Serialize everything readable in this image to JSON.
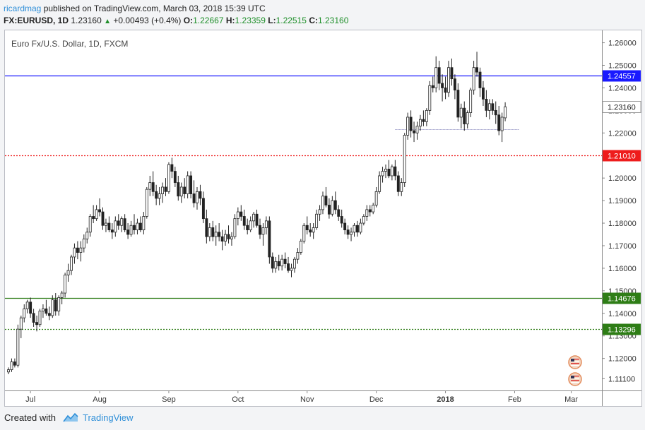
{
  "header": {
    "author": "ricardmag",
    "published_text": " published on TradingView.com, March 03, 2018 15:39 UTC",
    "symbol": "FX:EURUSD, 1D",
    "last": "1.23160",
    "change": "+0.00493 (+0.4%)",
    "o_label": "O:",
    "o_value": "1.22667",
    "h_label": "H:",
    "h_value": "1.23359",
    "l_label": "L:",
    "l_value": "1.22515",
    "c_label": "C:",
    "c_value": "1.23160"
  },
  "footer": {
    "created_with": "Created with",
    "brand": "TradingView"
  },
  "chart_data": {
    "type": "candlestick",
    "title": "Euro Fx/U.S. Dollar, 1D, FXCM",
    "ylim": [
      1.1058,
      1.2655
    ],
    "price_ticks": [
      "1.26000",
      "1.25000",
      "1.24000",
      "1.23000",
      "1.22000",
      "1.21000",
      "1.20000",
      "1.19000",
      "1.18000",
      "1.17000",
      "1.16000",
      "1.15000",
      "1.14000",
      "1.13000",
      "1.12000",
      "1.11100"
    ],
    "price_tick_values": [
      1.26,
      1.25,
      1.24,
      1.23,
      1.22,
      1.21,
      1.2,
      1.19,
      1.18,
      1.17,
      1.16,
      1.15,
      1.14,
      1.13,
      1.12,
      1.111
    ],
    "x_labels": [
      "Jul",
      "Aug",
      "Sep",
      "Oct",
      "Nov",
      "Dec",
      "2018",
      "Feb",
      "Mar"
    ],
    "x_label_bold": [
      false,
      false,
      false,
      false,
      false,
      false,
      true,
      false,
      false
    ],
    "x_label_index": [
      7,
      29,
      51,
      73,
      95,
      117,
      139,
      161,
      179
    ],
    "horizontal_levels": [
      {
        "price": 1.24557,
        "label": "1.24557",
        "color": "#1a1aff",
        "style": "solid"
      },
      {
        "price": 1.2101,
        "label": "1.21010",
        "color": "#ee1c1c",
        "style": "dotted"
      },
      {
        "price": 1.14676,
        "label": "1.14676",
        "color": "#2e7d16",
        "style": "solid"
      },
      {
        "price": 1.13296,
        "label": "1.13296",
        "color": "#2e7d16",
        "style": "dotted"
      }
    ],
    "last_price": {
      "price": 1.2316,
      "label": "1.23160"
    },
    "prev_close_line": 1.2218,
    "candle_width": 3.1,
    "candles": [
      [
        1.114,
        1.116,
        1.113,
        1.115
      ],
      [
        1.115,
        1.12,
        1.114,
        1.1185
      ],
      [
        1.1185,
        1.12,
        1.116,
        1.117
      ],
      [
        1.117,
        1.135,
        1.116,
        1.133
      ],
      [
        1.133,
        1.139,
        1.129,
        1.138
      ],
      [
        1.138,
        1.144,
        1.136,
        1.142
      ],
      [
        1.142,
        1.146,
        1.14,
        1.145
      ],
      [
        1.145,
        1.147,
        1.138,
        1.14
      ],
      [
        1.14,
        1.142,
        1.134,
        1.136
      ],
      [
        1.136,
        1.139,
        1.132,
        1.135
      ],
      [
        1.135,
        1.142,
        1.134,
        1.141
      ],
      [
        1.141,
        1.144,
        1.138,
        1.142
      ],
      [
        1.142,
        1.146,
        1.139,
        1.14
      ],
      [
        1.14,
        1.143,
        1.137,
        1.139
      ],
      [
        1.139,
        1.148,
        1.138,
        1.146
      ],
      [
        1.146,
        1.149,
        1.139,
        1.141
      ],
      [
        1.141,
        1.148,
        1.139,
        1.147
      ],
      [
        1.147,
        1.15,
        1.144,
        1.149
      ],
      [
        1.149,
        1.158,
        1.147,
        1.157
      ],
      [
        1.157,
        1.162,
        1.154,
        1.159
      ],
      [
        1.159,
        1.166,
        1.157,
        1.165
      ],
      [
        1.165,
        1.171,
        1.162,
        1.169
      ],
      [
        1.169,
        1.172,
        1.164,
        1.167
      ],
      [
        1.167,
        1.172,
        1.163,
        1.169
      ],
      [
        1.169,
        1.175,
        1.167,
        1.173
      ],
      [
        1.173,
        1.178,
        1.171,
        1.176
      ],
      [
        1.176,
        1.184,
        1.174,
        1.183
      ],
      [
        1.183,
        1.188,
        1.18,
        1.182
      ],
      [
        1.182,
        1.188,
        1.181,
        1.186
      ],
      [
        1.186,
        1.191,
        1.183,
        1.185
      ],
      [
        1.185,
        1.187,
        1.177,
        1.179
      ],
      [
        1.179,
        1.182,
        1.176,
        1.18
      ],
      [
        1.18,
        1.183,
        1.176,
        1.177
      ],
      [
        1.177,
        1.18,
        1.173,
        1.176
      ],
      [
        1.176,
        1.183,
        1.174,
        1.181
      ],
      [
        1.181,
        1.184,
        1.177,
        1.179
      ],
      [
        1.179,
        1.183,
        1.176,
        1.182
      ],
      [
        1.182,
        1.184,
        1.176,
        1.177
      ],
      [
        1.177,
        1.18,
        1.173,
        1.175
      ],
      [
        1.175,
        1.181,
        1.174,
        1.179
      ],
      [
        1.179,
        1.184,
        1.175,
        1.177
      ],
      [
        1.177,
        1.182,
        1.175,
        1.18
      ],
      [
        1.18,
        1.183,
        1.176,
        1.177
      ],
      [
        1.177,
        1.185,
        1.175,
        1.183
      ],
      [
        1.183,
        1.196,
        1.182,
        1.195
      ],
      [
        1.195,
        1.201,
        1.192,
        1.198
      ],
      [
        1.198,
        1.203,
        1.192,
        1.194
      ],
      [
        1.194,
        1.197,
        1.188,
        1.191
      ],
      [
        1.191,
        1.196,
        1.188,
        1.193
      ],
      [
        1.193,
        1.198,
        1.189,
        1.196
      ],
      [
        1.196,
        1.2,
        1.192,
        1.194
      ],
      [
        1.194,
        1.207,
        1.193,
        1.206
      ],
      [
        1.206,
        1.209,
        1.2,
        1.203
      ],
      [
        1.203,
        1.205,
        1.196,
        1.198
      ],
      [
        1.198,
        1.201,
        1.19,
        1.192
      ],
      [
        1.192,
        1.198,
        1.189,
        1.196
      ],
      [
        1.196,
        1.2,
        1.191,
        1.193
      ],
      [
        1.193,
        1.203,
        1.191,
        1.201
      ],
      [
        1.201,
        1.203,
        1.191,
        1.193
      ],
      [
        1.193,
        1.199,
        1.187,
        1.189
      ],
      [
        1.189,
        1.196,
        1.186,
        1.194
      ],
      [
        1.194,
        1.197,
        1.188,
        1.191
      ],
      [
        1.191,
        1.194,
        1.18,
        1.182
      ],
      [
        1.182,
        1.186,
        1.171,
        1.174
      ],
      [
        1.174,
        1.18,
        1.172,
        1.178
      ],
      [
        1.178,
        1.181,
        1.172,
        1.174
      ],
      [
        1.174,
        1.179,
        1.17,
        1.176
      ],
      [
        1.176,
        1.18,
        1.172,
        1.174
      ],
      [
        1.174,
        1.177,
        1.168,
        1.172
      ],
      [
        1.172,
        1.177,
        1.17,
        1.175
      ],
      [
        1.175,
        1.179,
        1.171,
        1.173
      ],
      [
        1.173,
        1.176,
        1.17,
        1.174
      ],
      [
        1.174,
        1.184,
        1.173,
        1.182
      ],
      [
        1.182,
        1.187,
        1.179,
        1.185
      ],
      [
        1.185,
        1.188,
        1.181,
        1.183
      ],
      [
        1.183,
        1.186,
        1.177,
        1.179
      ],
      [
        1.179,
        1.182,
        1.175,
        1.177
      ],
      [
        1.177,
        1.183,
        1.176,
        1.181
      ],
      [
        1.181,
        1.185,
        1.178,
        1.184
      ],
      [
        1.184,
        1.186,
        1.178,
        1.179
      ],
      [
        1.179,
        1.182,
        1.173,
        1.175
      ],
      [
        1.175,
        1.18,
        1.17,
        1.178
      ],
      [
        1.178,
        1.183,
        1.175,
        1.181
      ],
      [
        1.181,
        1.183,
        1.162,
        1.165
      ],
      [
        1.165,
        1.167,
        1.158,
        1.16
      ],
      [
        1.16,
        1.165,
        1.158,
        1.163
      ],
      [
        1.163,
        1.166,
        1.159,
        1.161
      ],
      [
        1.161,
        1.166,
        1.159,
        1.164
      ],
      [
        1.164,
        1.167,
        1.16,
        1.162
      ],
      [
        1.162,
        1.165,
        1.158,
        1.159
      ],
      [
        1.159,
        1.162,
        1.156,
        1.16
      ],
      [
        1.16,
        1.165,
        1.158,
        1.164
      ],
      [
        1.164,
        1.169,
        1.162,
        1.167
      ],
      [
        1.167,
        1.173,
        1.166,
        1.172
      ],
      [
        1.172,
        1.18,
        1.171,
        1.179
      ],
      [
        1.179,
        1.183,
        1.175,
        1.177
      ],
      [
        1.177,
        1.18,
        1.174,
        1.176
      ],
      [
        1.176,
        1.18,
        1.173,
        1.178
      ],
      [
        1.178,
        1.186,
        1.177,
        1.184
      ],
      [
        1.184,
        1.188,
        1.181,
        1.186
      ],
      [
        1.186,
        1.194,
        1.184,
        1.192
      ],
      [
        1.192,
        1.196,
        1.187,
        1.188
      ],
      [
        1.188,
        1.191,
        1.182,
        1.184
      ],
      [
        1.184,
        1.192,
        1.183,
        1.19
      ],
      [
        1.19,
        1.194,
        1.184,
        1.186
      ],
      [
        1.186,
        1.188,
        1.181,
        1.183
      ],
      [
        1.183,
        1.186,
        1.178,
        1.18
      ],
      [
        1.18,
        1.182,
        1.175,
        1.177
      ],
      [
        1.177,
        1.179,
        1.173,
        1.175
      ],
      [
        1.175,
        1.178,
        1.172,
        1.176
      ],
      [
        1.176,
        1.18,
        1.174,
        1.179
      ],
      [
        1.179,
        1.181,
        1.174,
        1.176
      ],
      [
        1.176,
        1.182,
        1.175,
        1.18
      ],
      [
        1.18,
        1.184,
        1.179,
        1.183
      ],
      [
        1.183,
        1.188,
        1.181,
        1.186
      ],
      [
        1.186,
        1.188,
        1.183,
        1.185
      ],
      [
        1.185,
        1.189,
        1.184,
        1.188
      ],
      [
        1.188,
        1.196,
        1.187,
        1.194
      ],
      [
        1.194,
        1.203,
        1.193,
        1.201
      ],
      [
        1.201,
        1.205,
        1.198,
        1.203
      ],
      [
        1.203,
        1.206,
        1.2,
        1.204
      ],
      [
        1.204,
        1.208,
        1.2,
        1.201
      ],
      [
        1.201,
        1.206,
        1.199,
        1.205
      ],
      [
        1.205,
        1.208,
        1.199,
        1.201
      ],
      [
        1.201,
        1.203,
        1.192,
        1.194
      ],
      [
        1.194,
        1.2,
        1.192,
        1.198
      ],
      [
        1.198,
        1.22,
        1.196,
        1.219
      ],
      [
        1.219,
        1.229,
        1.217,
        1.227
      ],
      [
        1.227,
        1.23,
        1.218,
        1.221
      ],
      [
        1.221,
        1.225,
        1.216,
        1.22
      ],
      [
        1.22,
        1.225,
        1.217,
        1.223
      ],
      [
        1.223,
        1.228,
        1.221,
        1.226
      ],
      [
        1.226,
        1.23,
        1.223,
        1.225
      ],
      [
        1.225,
        1.231,
        1.223,
        1.23
      ],
      [
        1.23,
        1.243,
        1.228,
        1.241
      ],
      [
        1.241,
        1.245,
        1.238,
        1.24
      ],
      [
        1.24,
        1.254,
        1.238,
        1.249
      ],
      [
        1.249,
        1.252,
        1.239,
        1.242
      ],
      [
        1.242,
        1.246,
        1.234,
        1.24
      ],
      [
        1.24,
        1.245,
        1.235,
        1.238
      ],
      [
        1.238,
        1.252,
        1.236,
        1.249
      ],
      [
        1.249,
        1.253,
        1.241,
        1.244
      ],
      [
        1.244,
        1.246,
        1.235,
        1.239
      ],
      [
        1.239,
        1.242,
        1.225,
        1.227
      ],
      [
        1.227,
        1.233,
        1.222,
        1.231
      ],
      [
        1.231,
        1.234,
        1.221,
        1.224
      ],
      [
        1.224,
        1.23,
        1.222,
        1.229
      ],
      [
        1.229,
        1.24,
        1.227,
        1.239
      ],
      [
        1.239,
        1.252,
        1.237,
        1.249
      ],
      [
        1.249,
        1.256,
        1.245,
        1.247
      ],
      [
        1.247,
        1.249,
        1.236,
        1.24
      ],
      [
        1.24,
        1.243,
        1.232,
        1.235
      ],
      [
        1.235,
        1.239,
        1.227,
        1.23
      ],
      [
        1.23,
        1.235,
        1.226,
        1.233
      ],
      [
        1.233,
        1.235,
        1.228,
        1.23
      ],
      [
        1.23,
        1.234,
        1.224,
        1.228
      ],
      [
        1.228,
        1.232,
        1.219,
        1.221
      ],
      [
        1.221,
        1.229,
        1.216,
        1.227
      ],
      [
        1.2267,
        1.2336,
        1.2252,
        1.2316
      ]
    ]
  }
}
